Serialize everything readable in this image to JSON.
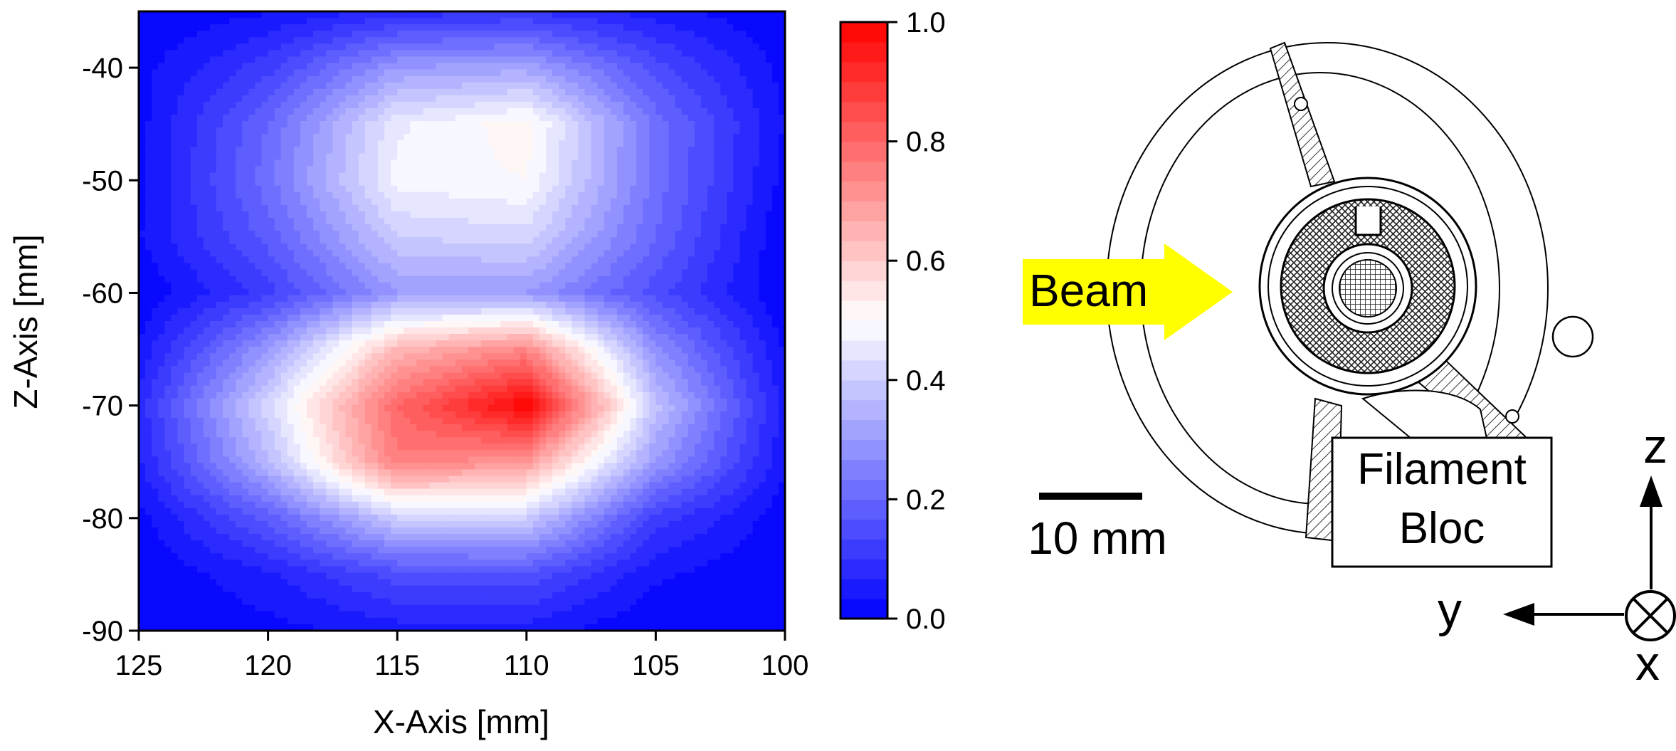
{
  "chart_data": {
    "type": "heatmap",
    "title": "",
    "xlabel": "X-Axis [mm]",
    "ylabel": "Z-Axis [mm]",
    "x_ticks": [
      "125",
      "120",
      "115",
      "110",
      "105",
      "100"
    ],
    "y_ticks": [
      "-40",
      "-50",
      "-60",
      "-70",
      "-80",
      "-90"
    ],
    "xlim": [
      125,
      100
    ],
    "ylim": [
      -90,
      -35
    ],
    "x_reversed": true,
    "colorbar": {
      "range": [
        0.0,
        1.0
      ],
      "ticks": [
        "0.0",
        "0.2",
        "0.4",
        "0.6",
        "0.8",
        "1.0"
      ],
      "colors": {
        "low": "#0000ff",
        "mid": "#ffffff",
        "high": "#ff0000"
      },
      "levels": 30
    },
    "grid_x": [
      125,
      120,
      115,
      110,
      105,
      100
    ],
    "grid_z": [
      -35,
      -40,
      -45,
      -50,
      -55,
      -60,
      -65,
      -70,
      -75,
      -80,
      -85,
      -90
    ],
    "values": [
      [
        0.0,
        0.03,
        0.08,
        0.1,
        0.05,
        0.0
      ],
      [
        0.02,
        0.12,
        0.3,
        0.32,
        0.15,
        0.02
      ],
      [
        0.02,
        0.2,
        0.46,
        0.52,
        0.22,
        0.03
      ],
      [
        0.02,
        0.22,
        0.48,
        0.5,
        0.22,
        0.02
      ],
      [
        0.03,
        0.18,
        0.4,
        0.42,
        0.2,
        0.0
      ],
      [
        0.0,
        0.12,
        0.3,
        0.3,
        0.15,
        0.0
      ],
      [
        0.04,
        0.3,
        0.64,
        0.74,
        0.28,
        0.03
      ],
      [
        0.08,
        0.42,
        0.8,
        1.0,
        0.38,
        0.05
      ],
      [
        0.06,
        0.36,
        0.76,
        0.7,
        0.3,
        0.04
      ],
      [
        0.02,
        0.18,
        0.4,
        0.4,
        0.12,
        0.01
      ],
      [
        0.0,
        0.06,
        0.15,
        0.16,
        0.04,
        0.0
      ],
      [
        0.0,
        0.02,
        0.05,
        0.05,
        0.0,
        0.0
      ]
    ]
  },
  "diagram": {
    "beam_label": "Beam",
    "beam_color": "#ffff00",
    "filament_label_line1": "Filament",
    "filament_label_line2": "Bloc",
    "scale_label": "10 mm",
    "axis_z": "z",
    "axis_y": "y",
    "axis_x": "x"
  }
}
